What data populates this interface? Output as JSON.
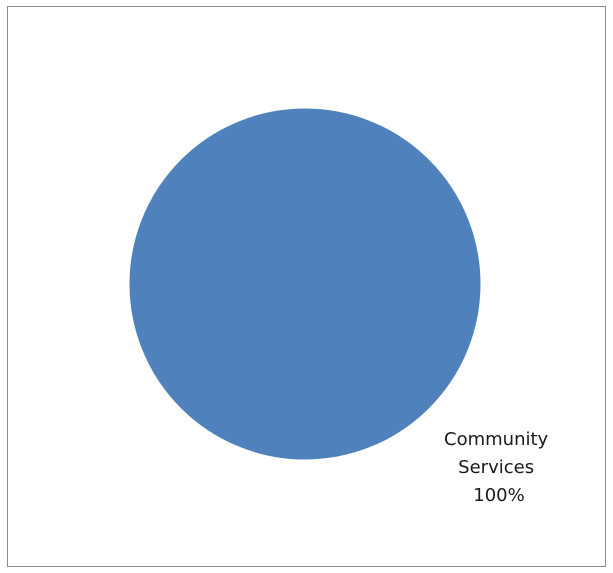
{
  "chart_data": {
    "type": "pie",
    "title": "",
    "slices": [
      {
        "category": "Community Services",
        "category_lines": [
          "Community",
          "Services"
        ],
        "value": 100,
        "percent_label": "100%",
        "color": "#4f81bd"
      }
    ],
    "legend": "none",
    "data_labels": "category-and-percent"
  }
}
